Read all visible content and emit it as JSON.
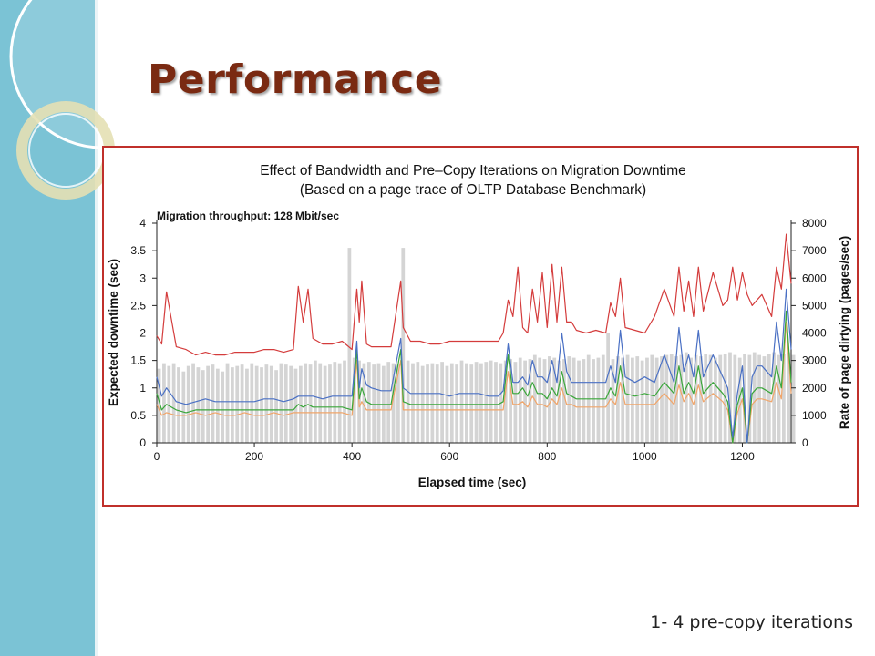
{
  "slide": {
    "title": "Performance",
    "caption": "1- 4 pre-copy iterations"
  },
  "colors": {
    "sidebar": "#7bc3d5",
    "title": "#7a2a12",
    "frame": "#c0302b",
    "iter1": "#d43c3c",
    "iter2": "#4a70c4",
    "iter3": "#3aa63a",
    "iter4": "#f0a56a",
    "dirty": "#d4d4d4"
  },
  "chart_data": {
    "type": "line",
    "title": "Effect of Bandwidth and Pre–Copy Iterations on Migration Downtime",
    "subtitle": "(Based on a page trace of OLTP Database Benchmark)",
    "annotation": "Migration throughput: 128 Mbit/sec",
    "xlabel": "Elapsed time (sec)",
    "ylabel": "Expected downtime (sec)",
    "y2label": "Rate of page dirtying (pages/sec)",
    "xlim": [
      0,
      1300
    ],
    "ylim": [
      0,
      4
    ],
    "y2lim": [
      0,
      8000
    ],
    "xticks": [
      "0",
      "200",
      "400",
      "600",
      "800",
      "1000",
      "1200"
    ],
    "yticks": [
      "0",
      "0.5",
      "1",
      "1.5",
      "2",
      "2.5",
      "3",
      "3.5",
      "4"
    ],
    "y2ticks": [
      "0",
      "1000",
      "2000",
      "3000",
      "4000",
      "5000",
      "6000",
      "7000",
      "8000"
    ],
    "x": [
      0,
      10,
      20,
      40,
      60,
      80,
      100,
      120,
      140,
      160,
      180,
      200,
      220,
      240,
      260,
      280,
      290,
      300,
      310,
      320,
      340,
      360,
      380,
      400,
      410,
      415,
      420,
      430,
      440,
      460,
      480,
      500,
      505,
      520,
      540,
      560,
      580,
      600,
      620,
      640,
      660,
      680,
      700,
      710,
      720,
      730,
      740,
      750,
      760,
      770,
      780,
      790,
      800,
      810,
      820,
      830,
      840,
      850,
      860,
      880,
      900,
      920,
      930,
      940,
      950,
      960,
      980,
      1000,
      1020,
      1040,
      1060,
      1070,
      1080,
      1090,
      1100,
      1110,
      1120,
      1140,
      1160,
      1170,
      1180,
      1190,
      1200,
      1210,
      1220,
      1230,
      1240,
      1260,
      1270,
      1280,
      1290,
      1300
    ],
    "series": [
      {
        "name": "1",
        "values": [
          1.95,
          1.8,
          2.75,
          1.75,
          1.7,
          1.6,
          1.65,
          1.6,
          1.6,
          1.65,
          1.65,
          1.65,
          1.7,
          1.7,
          1.65,
          1.7,
          2.85,
          2.2,
          2.8,
          1.9,
          1.8,
          1.8,
          1.85,
          1.7,
          2.8,
          2.2,
          2.95,
          1.8,
          1.75,
          1.75,
          1.75,
          2.95,
          2.1,
          1.85,
          1.85,
          1.8,
          1.8,
          1.85,
          1.85,
          1.85,
          1.85,
          1.85,
          1.85,
          2.0,
          2.6,
          2.3,
          3.2,
          2.1,
          2.0,
          2.8,
          2.2,
          3.1,
          2.1,
          3.25,
          2.2,
          3.2,
          2.2,
          2.2,
          2.05,
          2.0,
          2.05,
          2.0,
          2.55,
          2.3,
          3.0,
          2.1,
          2.05,
          2.0,
          2.3,
          2.8,
          2.3,
          3.2,
          2.4,
          2.95,
          2.3,
          3.2,
          2.4,
          3.1,
          2.5,
          2.6,
          3.2,
          2.6,
          3.1,
          2.7,
          2.5,
          2.6,
          2.7,
          2.3,
          3.2,
          2.8,
          3.8,
          2.9
        ]
      },
      {
        "name": "2",
        "values": [
          1.2,
          0.85,
          1.0,
          0.75,
          0.7,
          0.75,
          0.8,
          0.75,
          0.75,
          0.75,
          0.75,
          0.75,
          0.8,
          0.8,
          0.75,
          0.8,
          0.85,
          0.85,
          0.85,
          0.85,
          0.8,
          0.85,
          0.85,
          0.85,
          1.85,
          1.0,
          1.35,
          1.05,
          1.0,
          0.95,
          0.95,
          1.9,
          1.0,
          0.9,
          0.9,
          0.9,
          0.9,
          0.85,
          0.9,
          0.9,
          0.9,
          0.85,
          0.85,
          0.95,
          1.8,
          1.1,
          1.1,
          1.2,
          1.05,
          1.5,
          1.2,
          1.2,
          1.1,
          1.5,
          1.1,
          2.0,
          1.3,
          1.1,
          1.1,
          1.1,
          1.1,
          1.1,
          1.4,
          1.1,
          2.05,
          1.2,
          1.1,
          1.2,
          1.1,
          1.6,
          1.1,
          2.1,
          1.3,
          1.6,
          1.2,
          2.05,
          1.2,
          1.6,
          1.2,
          1.0,
          0.1,
          0.9,
          1.4,
          0.0,
          1.2,
          1.4,
          1.4,
          1.2,
          2.2,
          1.5,
          2.8,
          1.7
        ]
      },
      {
        "name": "3",
        "values": [
          0.9,
          0.6,
          0.7,
          0.6,
          0.55,
          0.6,
          0.6,
          0.6,
          0.6,
          0.6,
          0.6,
          0.6,
          0.6,
          0.6,
          0.6,
          0.6,
          0.7,
          0.65,
          0.7,
          0.65,
          0.65,
          0.65,
          0.65,
          0.6,
          1.7,
          0.8,
          1.0,
          0.75,
          0.7,
          0.7,
          0.7,
          1.7,
          0.75,
          0.7,
          0.7,
          0.7,
          0.7,
          0.7,
          0.7,
          0.7,
          0.7,
          0.7,
          0.7,
          0.75,
          1.6,
          0.9,
          0.9,
          1.0,
          0.85,
          1.1,
          0.9,
          0.9,
          0.8,
          1.0,
          0.85,
          1.3,
          0.9,
          0.85,
          0.8,
          0.8,
          0.8,
          0.8,
          1.0,
          0.85,
          1.4,
          0.9,
          0.85,
          0.9,
          0.85,
          1.1,
          0.9,
          1.4,
          0.9,
          1.1,
          0.9,
          1.4,
          0.9,
          1.1,
          0.9,
          0.75,
          0.0,
          0.7,
          1.0,
          0.0,
          0.9,
          1.0,
          1.0,
          0.9,
          1.4,
          1.0,
          2.4,
          1.1
        ]
      },
      {
        "name": "4",
        "values": [
          0.7,
          0.5,
          0.55,
          0.5,
          0.5,
          0.55,
          0.5,
          0.55,
          0.5,
          0.5,
          0.55,
          0.5,
          0.5,
          0.55,
          0.5,
          0.55,
          0.55,
          0.55,
          0.55,
          0.55,
          0.55,
          0.55,
          0.55,
          0.5,
          1.5,
          0.65,
          0.75,
          0.6,
          0.6,
          0.6,
          0.6,
          1.5,
          0.6,
          0.6,
          0.6,
          0.6,
          0.6,
          0.6,
          0.6,
          0.6,
          0.6,
          0.6,
          0.6,
          0.6,
          1.3,
          0.7,
          0.7,
          0.75,
          0.65,
          0.85,
          0.7,
          0.7,
          0.65,
          0.8,
          0.7,
          1.0,
          0.7,
          0.7,
          0.65,
          0.65,
          0.65,
          0.65,
          0.8,
          0.7,
          1.1,
          0.7,
          0.7,
          0.7,
          0.7,
          0.9,
          0.7,
          1.05,
          0.75,
          0.9,
          0.7,
          1.05,
          0.75,
          0.9,
          0.75,
          0.6,
          0.0,
          0.55,
          0.8,
          0.0,
          0.7,
          0.8,
          0.8,
          0.75,
          1.1,
          0.8,
          2.2,
          0.9
        ]
      }
    ],
    "dirty_rate": {
      "interval_sec": 10,
      "values": [
        2700,
        2900,
        2800,
        2900,
        2750,
        2600,
        2800,
        2900,
        2750,
        2650,
        2800,
        2850,
        2700,
        2600,
        2900,
        2750,
        2800,
        2850,
        2700,
        2900,
        2800,
        2750,
        2850,
        2800,
        2650,
        2900,
        2850,
        2800,
        2700,
        2800,
        2900,
        2850,
        3000,
        2900,
        2800,
        2850,
        2950,
        2900,
        3000,
        7100,
        3100,
        3000,
        2900,
        2950,
        2850,
        2900,
        2800,
        2950,
        2900,
        2850,
        7100,
        3000,
        2900,
        2950,
        2800,
        2850,
        2900,
        2850,
        2950,
        2800,
        2900,
        2850,
        3000,
        2900,
        2850,
        2950,
        2900,
        2950,
        3000,
        2950,
        2900,
        3000,
        3050,
        2950,
        3100,
        3000,
        3050,
        3200,
        3100,
        3050,
        3150,
        3100,
        3000,
        3050,
        3150,
        3100,
        3000,
        3050,
        3200,
        3050,
        3100,
        3200,
        4000,
        3050,
        3150,
        3100,
        3200,
        3100,
        3150,
        3000,
        3100,
        3200,
        3100,
        3150,
        3200,
        3250,
        3150,
        3200,
        3300,
        3100,
        3200,
        3150,
        3250,
        3200,
        3100,
        3200,
        3250,
        3300,
        3200,
        3100,
        3250,
        3200,
        3300,
        3200,
        3150,
        3250,
        3300,
        3200,
        3250,
        3300,
        3200
      ]
    }
  }
}
